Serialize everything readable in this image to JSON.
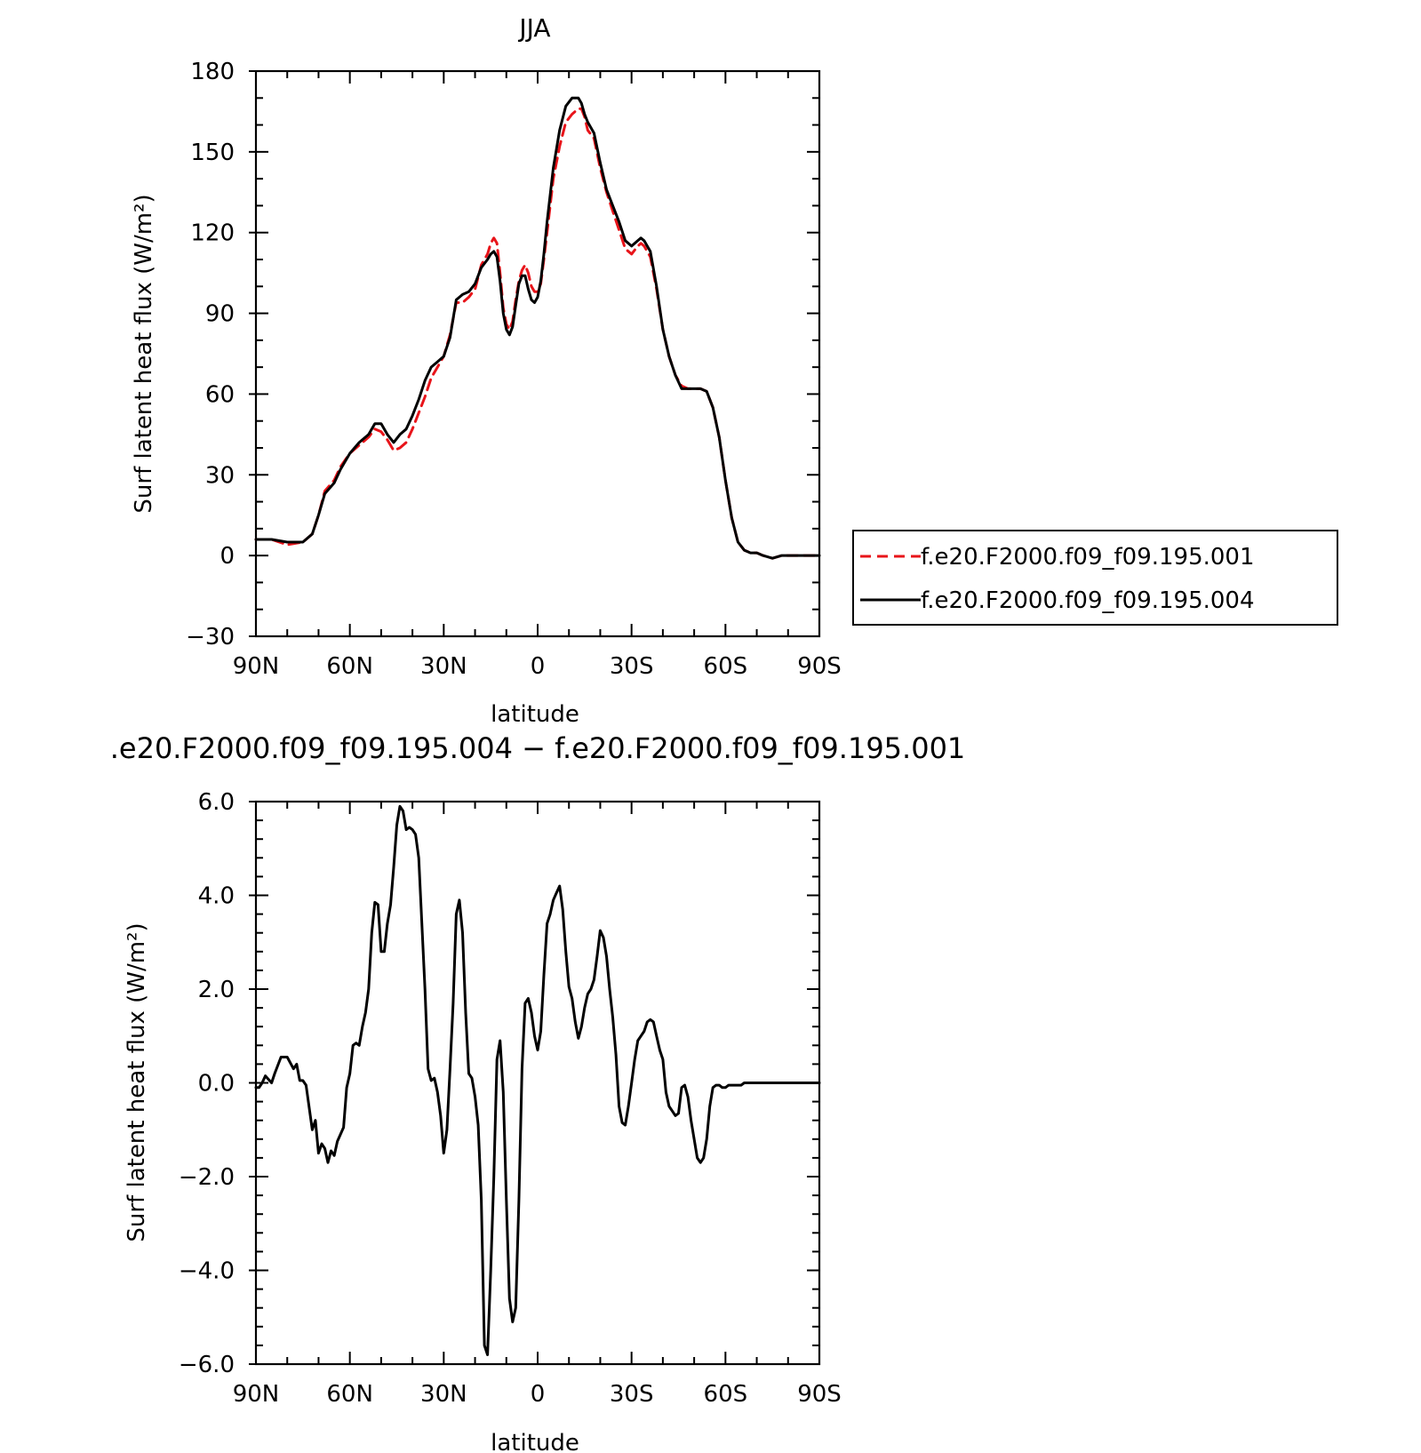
{
  "chart_data": [
    {
      "type": "line",
      "title": "JJA",
      "xlabel": "latitude",
      "ylabel": "Surf latent heat flux (W/m²)",
      "xlim": [
        90,
        -90
      ],
      "ylim": [
        -30,
        180
      ],
      "x_ticks": [
        90,
        60,
        30,
        0,
        -30,
        -60,
        -90
      ],
      "x_tick_labels": [
        "90N",
        "60N",
        "30N",
        "0",
        "30S",
        "60S",
        "90S"
      ],
      "y_ticks": [
        -30,
        0,
        30,
        60,
        90,
        120,
        150,
        180
      ],
      "y_tick_labels": [
        "−30",
        "0",
        "30",
        "60",
        "90",
        "120",
        "150",
        "180"
      ],
      "legend": "right-of-plot",
      "series": [
        {
          "name": "f.e20.F2000.f09_f09.195.001",
          "color": "#e8141a",
          "style": "dashed",
          "x": [
            90,
            85,
            80,
            75,
            72,
            70,
            68,
            65,
            63,
            60,
            57,
            54,
            52,
            50,
            48,
            46,
            44,
            42,
            40,
            38,
            36,
            34,
            32,
            30,
            28,
            26,
            24,
            22,
            20,
            18,
            16,
            15,
            14,
            13,
            12,
            11,
            10,
            9,
            8,
            7,
            6,
            5,
            4,
            3,
            2,
            1,
            0,
            -1,
            -2,
            -3,
            -4,
            -5,
            -7,
            -9,
            -11,
            -13,
            -14,
            -15,
            -16,
            -18,
            -20,
            -22,
            -24,
            -26,
            -28,
            -30,
            -32,
            -33,
            -34,
            -36,
            -38,
            -40,
            -42,
            -44,
            -46,
            -48,
            -50,
            -52,
            -54,
            -56,
            -58,
            -60,
            -62,
            -64,
            -66,
            -68,
            -70,
            -72,
            -75,
            -78,
            -80,
            -82,
            -85,
            -88,
            -90
          ],
          "y": [
            6,
            6,
            4,
            5,
            8,
            15,
            24,
            28,
            33,
            38,
            41,
            44,
            47,
            46,
            43,
            39,
            40,
            42,
            47,
            53,
            59,
            66,
            70,
            74,
            82,
            94,
            94,
            96,
            99,
            108,
            112,
            116,
            118,
            116,
            105,
            92,
            86,
            84,
            87,
            95,
            102,
            106,
            108,
            105,
            100,
            98,
            98,
            101,
            110,
            120,
            130,
            140,
            152,
            161,
            164,
            166,
            166,
            163,
            158,
            155,
            144,
            135,
            128,
            121,
            114,
            112,
            115,
            116,
            115,
            111,
            99,
            84,
            74,
            67,
            63,
            62,
            62,
            62,
            61,
            55,
            44,
            28,
            14,
            5,
            2,
            1,
            1,
            0,
            -1,
            0,
            0,
            0,
            0,
            0,
            0
          ]
        },
        {
          "name": "f.e20.F2000.f09_f09.195.004",
          "color": "#000000",
          "style": "solid",
          "x": [
            90,
            85,
            80,
            75,
            72,
            70,
            68,
            65,
            63,
            60,
            57,
            54,
            52,
            50,
            48,
            46,
            44,
            42,
            40,
            38,
            36,
            34,
            32,
            30,
            28,
            26,
            24,
            22,
            20,
            18,
            16,
            15,
            14,
            13,
            12,
            11,
            10,
            9,
            8,
            7,
            6,
            5,
            4,
            3,
            2,
            1,
            0,
            -1,
            -2,
            -3,
            -4,
            -5,
            -7,
            -9,
            -11,
            -13,
            -14,
            -15,
            -16,
            -18,
            -20,
            -22,
            -24,
            -26,
            -28,
            -30,
            -32,
            -33,
            -34,
            -36,
            -38,
            -40,
            -42,
            -44,
            -46,
            -48,
            -50,
            -52,
            -54,
            -56,
            -58,
            -60,
            -62,
            -64,
            -66,
            -68,
            -70,
            -72,
            -75,
            -78,
            -80,
            -82,
            -85,
            -88,
            -90
          ],
          "y": [
            6,
            6,
            5,
            5,
            8,
            15,
            23,
            27,
            32,
            38,
            42,
            45,
            49,
            49,
            45,
            42,
            45,
            47,
            52,
            58,
            65,
            70,
            72,
            74,
            81,
            95,
            97,
            98,
            101,
            107,
            110,
            112,
            113,
            111,
            102,
            90,
            84,
            82,
            85,
            93,
            101,
            104,
            104,
            99,
            95,
            94,
            96,
            102,
            112,
            124,
            134,
            144,
            158,
            167,
            170,
            170,
            168,
            164,
            161,
            157,
            146,
            136,
            130,
            124,
            117,
            115,
            117,
            118,
            117,
            113,
            100,
            84,
            74,
            67,
            62,
            62,
            62,
            62,
            61,
            55,
            44,
            28,
            14,
            5,
            2,
            1,
            1,
            0,
            -1,
            0,
            0,
            0,
            0,
            0,
            0
          ]
        }
      ]
    },
    {
      "type": "line",
      "title": ".e20.F2000.f09_f09.195.004 − f.e20.F2000.f09_f09.195.001",
      "xlabel": "latitude",
      "ylabel": "Surf latent heat flux (W/m²)",
      "xlim": [
        90,
        -90
      ],
      "ylim": [
        -6,
        6
      ],
      "x_ticks": [
        90,
        60,
        30,
        0,
        -30,
        -60,
        -90
      ],
      "x_tick_labels": [
        "90N",
        "60N",
        "30N",
        "0",
        "30S",
        "60S",
        "90S"
      ],
      "y_ticks": [
        -6,
        -4,
        -2,
        0,
        2,
        4,
        6
      ],
      "y_tick_labels": [
        "−6.0",
        "−4.0",
        "−2.0",
        "0.0",
        "2.0",
        "4.0",
        "6.0"
      ],
      "series": [
        {
          "color": "#000000",
          "style": "solid",
          "x": [
            90,
            89,
            88,
            87,
            85,
            84,
            82,
            80,
            78,
            77,
            76,
            75,
            74,
            72,
            71,
            70,
            69,
            68,
            67,
            66,
            65,
            64,
            63,
            62,
            61,
            60,
            59,
            58,
            57,
            56,
            55,
            54,
            53,
            52,
            51,
            50,
            49,
            48,
            47,
            46,
            45,
            44,
            43,
            42,
            41,
            40,
            39,
            38,
            37,
            36,
            35,
            34,
            33,
            32,
            31,
            30,
            29,
            28,
            27,
            26,
            25,
            24,
            23,
            22,
            21,
            20,
            19,
            18,
            17,
            16,
            15,
            14,
            13,
            12,
            11,
            10,
            9,
            8,
            7,
            6,
            5,
            4,
            3,
            2,
            1,
            0,
            -1,
            -2,
            -3,
            -4,
            -5,
            -6,
            -7,
            -8,
            -9,
            -10,
            -11,
            -12,
            -13,
            -14,
            -15,
            -16,
            -17,
            -18,
            -19,
            -20,
            -21,
            -22,
            -23,
            -24,
            -25,
            -26,
            -27,
            -28,
            -29,
            -30,
            -31,
            -32,
            -33,
            -34,
            -35,
            -36,
            -37,
            -38,
            -39,
            -40,
            -41,
            -42,
            -43,
            -44,
            -45,
            -46,
            -47,
            -48,
            -49,
            -50,
            -51,
            -52,
            -53,
            -54,
            -55,
            -56,
            -57,
            -58,
            -59,
            -60,
            -61,
            -62,
            -63,
            -64,
            -65,
            -66,
            -67,
            -68,
            -69,
            -70,
            -72,
            -74,
            -76,
            -78,
            -80,
            -82,
            -84,
            -86,
            -88,
            -90
          ],
          "y": [
            -0.1,
            -0.1,
            0.0,
            0.15,
            0.0,
            0.2,
            0.55,
            0.55,
            0.3,
            0.4,
            0.05,
            0.05,
            -0.05,
            -1.0,
            -0.8,
            -1.5,
            -1.3,
            -1.4,
            -1.7,
            -1.45,
            -1.55,
            -1.25,
            -1.1,
            -0.95,
            -0.1,
            0.2,
            0.8,
            0.85,
            0.8,
            1.2,
            1.5,
            2.0,
            3.2,
            3.85,
            3.8,
            2.8,
            2.8,
            3.4,
            3.8,
            4.6,
            5.5,
            5.9,
            5.8,
            5.4,
            5.45,
            5.4,
            5.3,
            4.8,
            3.4,
            2.0,
            0.3,
            0.05,
            0.1,
            -0.2,
            -0.7,
            -1.5,
            -1.0,
            0.3,
            1.7,
            3.6,
            3.9,
            3.2,
            1.5,
            0.2,
            0.1,
            -0.3,
            -0.9,
            -2.5,
            -5.6,
            -5.8,
            -4.0,
            -2.0,
            0.5,
            0.9,
            -0.2,
            -2.5,
            -4.6,
            -5.1,
            -4.8,
            -2.5,
            0.3,
            1.7,
            1.8,
            1.5,
            1.0,
            0.7,
            1.1,
            2.3,
            3.4,
            3.6,
            3.9,
            4.05,
            4.2,
            3.7,
            2.8,
            2.05,
            1.8,
            1.3,
            0.95,
            1.2,
            1.6,
            1.9,
            2.0,
            2.2,
            2.7,
            3.25,
            3.1,
            2.7,
            2.0,
            1.4,
            0.6,
            -0.5,
            -0.85,
            -0.9,
            -0.5,
            0.0,
            0.5,
            0.9,
            1.0,
            1.1,
            1.3,
            1.35,
            1.3,
            1.0,
            0.7,
            0.5,
            -0.2,
            -0.5,
            -0.6,
            -0.7,
            -0.65,
            -0.1,
            -0.05,
            -0.3,
            -0.8,
            -1.2,
            -1.6,
            -1.7,
            -1.6,
            -1.2,
            -0.5,
            -0.1,
            -0.05,
            -0.05,
            -0.1,
            -0.1,
            -0.05,
            -0.05,
            -0.05,
            -0.05,
            -0.05,
            0.0,
            0.0,
            0.0,
            0.0,
            0.0,
            0.0,
            0.0,
            0.0,
            0.0,
            0.0,
            0.0,
            0.0,
            0.0,
            0.0,
            0.0
          ]
        }
      ]
    }
  ]
}
